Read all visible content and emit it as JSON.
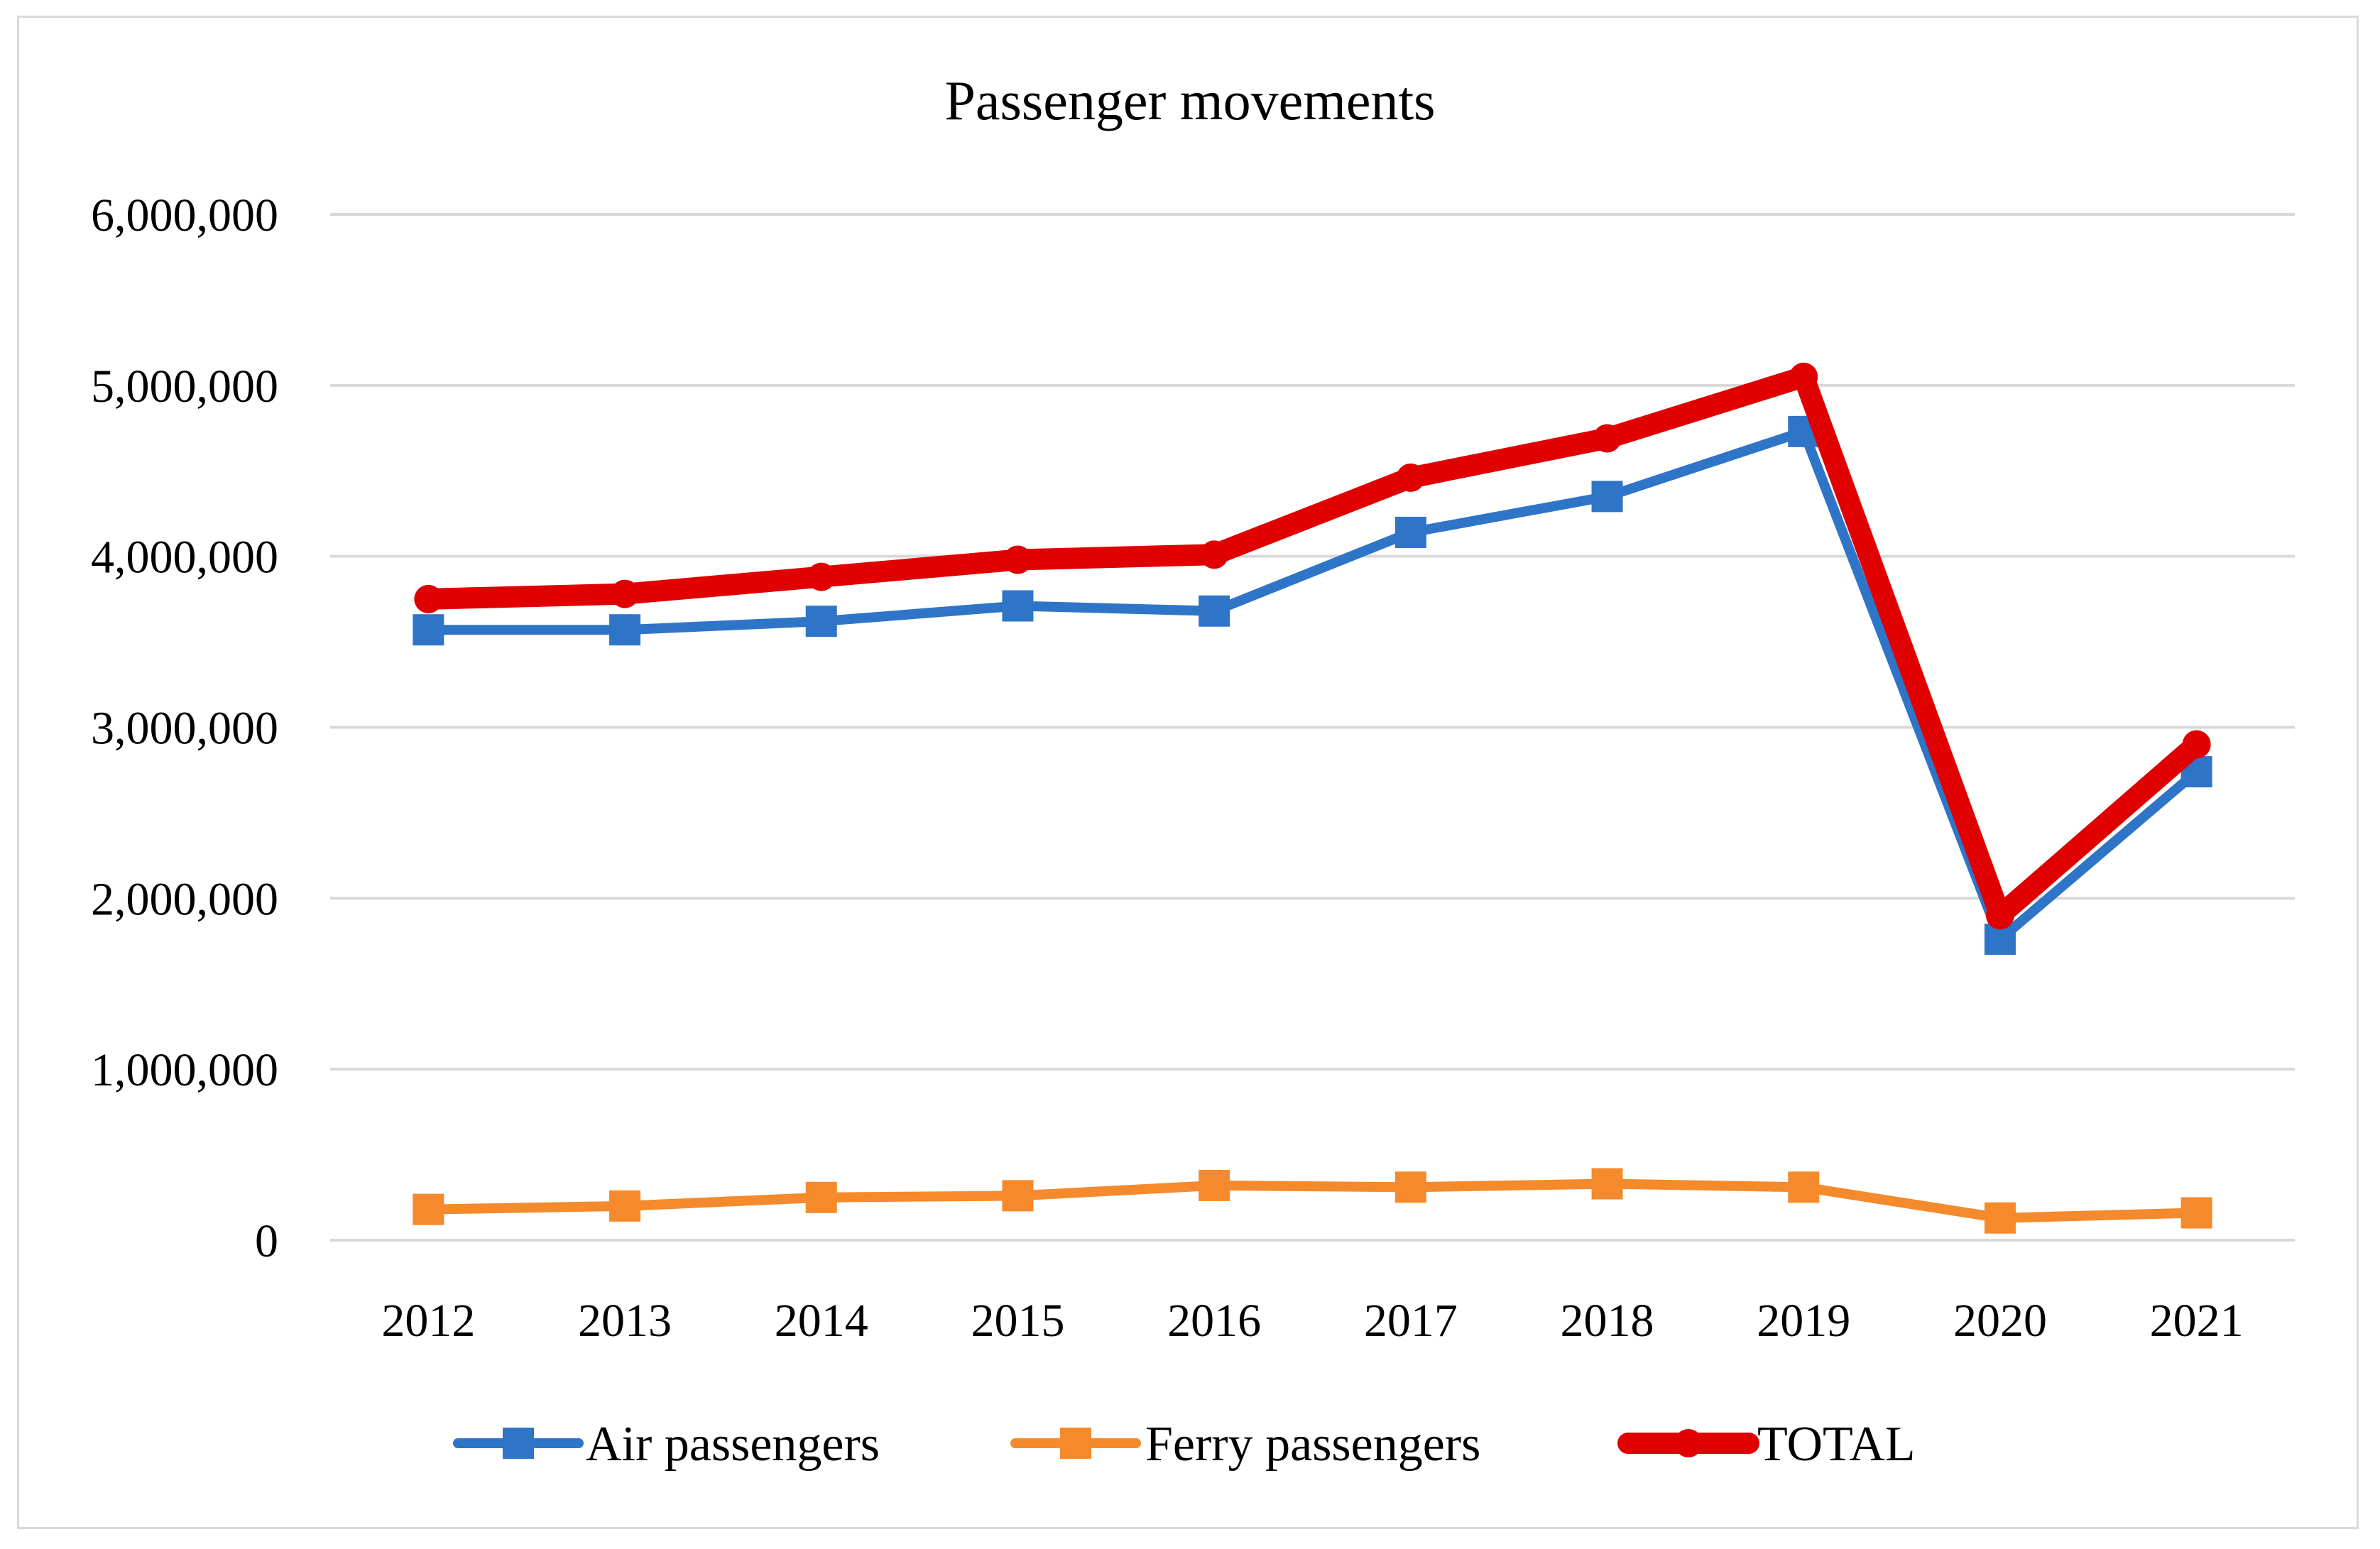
{
  "chart_data": {
    "type": "line",
    "title": "Passenger movements",
    "xlabel": "",
    "ylabel": "",
    "categories": [
      "2012",
      "2013",
      "2014",
      "2015",
      "2016",
      "2017",
      "2018",
      "2019",
      "2020",
      "2021"
    ],
    "ylim": [
      0,
      6000000
    ],
    "y_ticks": [
      0,
      1000000,
      2000000,
      3000000,
      4000000,
      5000000,
      6000000
    ],
    "y_tick_labels": [
      "0",
      "1,000,000",
      "2,000,000",
      "3,000,000",
      "4,000,000",
      "5,000,000",
      "6,000,000"
    ],
    "grid": true,
    "legend_position": "bottom",
    "series": [
      {
        "name": "Air passengers",
        "color": "#2E75C8",
        "marker": "square",
        "values": [
          3570000,
          3570000,
          3620000,
          3710000,
          3680000,
          4140000,
          4350000,
          4730000,
          1760000,
          2740000
        ]
      },
      {
        "name": "Ferry passengers",
        "color": "#F58A2C",
        "marker": "square",
        "values": [
          180000,
          200000,
          250000,
          260000,
          320000,
          310000,
          330000,
          310000,
          130000,
          160000
        ]
      },
      {
        "name": "TOTAL",
        "color": "#E00000",
        "marker": "circle",
        "values": [
          3750000,
          3780000,
          3880000,
          3980000,
          4010000,
          4460000,
          4690000,
          5050000,
          1900000,
          2900000
        ]
      }
    ]
  }
}
